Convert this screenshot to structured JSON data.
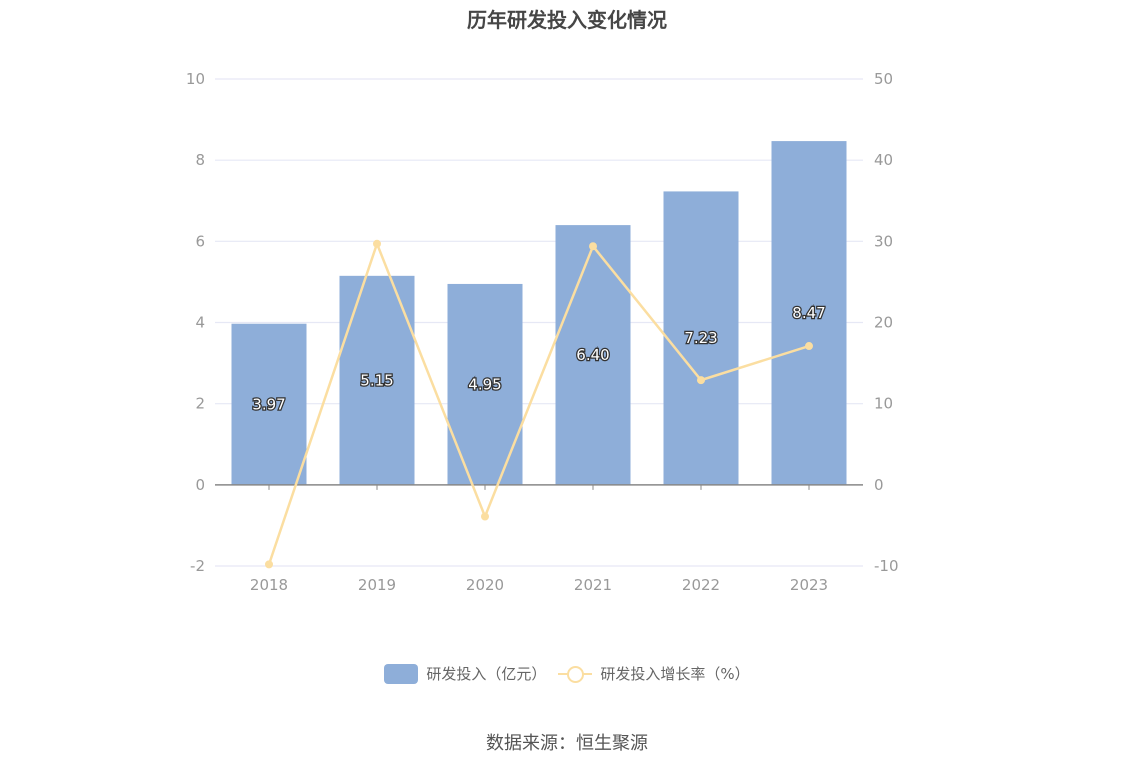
{
  "title": "历年研发投入变化情况",
  "source": "数据来源：恒生聚源",
  "colors": {
    "bar": "#8eaed9",
    "line": "#fbdea1",
    "grid": "#e6e8f5",
    "axis": "#999999"
  },
  "chart_data": {
    "type": "bar",
    "categories": [
      "2018",
      "2019",
      "2020",
      "2021",
      "2022",
      "2023"
    ],
    "series": [
      {
        "name": "研发投入（亿元）",
        "type": "bar",
        "axis": "left",
        "values": [
          3.97,
          5.15,
          4.95,
          6.4,
          7.23,
          8.47
        ],
        "labels": [
          "3.97",
          "5.15",
          "4.95",
          "6.40",
          "7.23",
          "8.47"
        ]
      },
      {
        "name": "研发投入增长率（%）",
        "type": "line",
        "axis": "right",
        "values": [
          -9.8,
          29.7,
          -3.9,
          29.4,
          12.9,
          17.1
        ]
      }
    ],
    "y_left": {
      "min": -2,
      "max": 10,
      "ticks": [
        "-2",
        "0",
        "2",
        "4",
        "6",
        "8",
        "10"
      ]
    },
    "y_right": {
      "min": -10,
      "max": 50,
      "ticks": [
        "-10",
        "0",
        "10",
        "20",
        "30",
        "40",
        "50"
      ]
    },
    "grid": true,
    "legend": "bottom-center"
  }
}
